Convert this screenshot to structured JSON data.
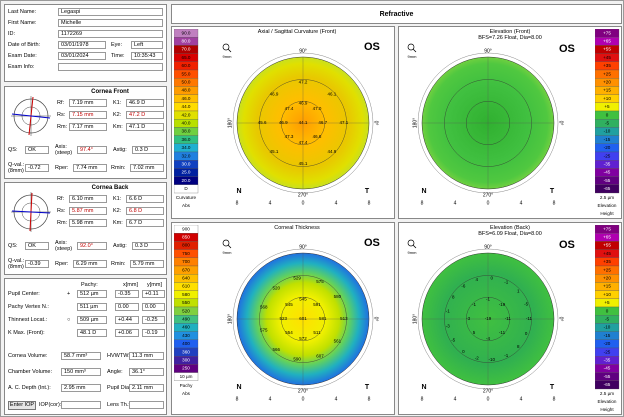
{
  "header": {
    "title": "Refractive"
  },
  "patient": {
    "last_name_label": "Last Name:",
    "last_name": "Legaspi",
    "first_name_label": "First Name:",
    "first_name": "Michelle",
    "id_label": "ID:",
    "id": "1172269",
    "dob_label": "Date of Birth:",
    "dob": "03/01/1978",
    "eye_label": "Eye:",
    "eye": "Left",
    "exam_date_label": "Exam Date:",
    "exam_date": "03/01/2024",
    "time_label": "Time:",
    "time": "10:35:43",
    "exam_info_label": "Exam Info:"
  },
  "cornea_front": {
    "title": "Cornea Front",
    "rf_label": "Rf:",
    "rf": "7.19 mm",
    "k1_label": "K1:",
    "k1": "46.9 D",
    "rs_label": "Rs:",
    "rs": "7.15 mm",
    "k2_label": "K2:",
    "k2": "47.2 D",
    "rm_label": "Rm:",
    "rm": "7.17 mm",
    "km_label": "Km:",
    "km": "47.1 D",
    "qs_label": "QS:",
    "qs": "OK",
    "axis_label": "Axis:\n(steep)",
    "axis": "97.4°",
    "astig_label": "Astig:",
    "astig": "0.3 D",
    "qval_label": "Q-val.:\n(8mm)",
    "qval": "-0.72",
    "rper_label": "Rper:",
    "rper": "7.74 mm",
    "rmin_label": "Rmin:",
    "rmin": "7.02 mm"
  },
  "cornea_back": {
    "title": "Cornea Back",
    "rf_label": "Rf:",
    "rf": "6.10 mm",
    "k1_label": "K1:",
    "k1": "6.6 D",
    "rs_label": "Rs:",
    "rs": "5.87 mm",
    "k2_label": "K2:",
    "k2": "6.8 D",
    "rm_label": "Rm:",
    "rm": "5.98 mm",
    "km_label": "Km:",
    "km": "6.7 D",
    "qs_label": "QS:",
    "qs": "OK",
    "axis_label": "Axis:\n(steep)",
    "axis": "92.0°",
    "astig_label": "Astig:",
    "astig": "0.3 D",
    "qval_label": "Q-val.:\n(8mm)",
    "qval": "-0.39",
    "rper_label": "Rper:",
    "rper": "6.29 mm",
    "rmin_label": "Rmin:",
    "rmin": "5.79 mm"
  },
  "pachy": {
    "col_pachy": "Pachy:",
    "col_x": "x[mm]",
    "col_y": "y[mm]",
    "rows": [
      {
        "label": "Pupil Center:",
        "sym": "+",
        "pachy": "512 µm",
        "x": "-0.35",
        "y": "+0.11"
      },
      {
        "label": "Pachy Vertex N.:",
        "sym": "",
        "pachy": "511 µm",
        "x": "0.00",
        "y": "0.00"
      },
      {
        "label": "Thinnest Locat.:",
        "sym": "○",
        "pachy": "509 µm",
        "x": "+0.44",
        "y": "-0.25"
      },
      {
        "label": "K Max. (Front):",
        "sym": "",
        "pachy": "48.1 D",
        "x": "+0.06",
        "y": "-0.19"
      }
    ],
    "cornea_volume_label": "Cornea Volume:",
    "cornea_volume": "58.7 mm³",
    "hvwtw_label": "HVWTW:",
    "hvwtw": "11.3 mm",
    "chamber_volume_label": "Chamber Volume:",
    "chamber_volume": "150 mm³",
    "angle_label": "Angle:",
    "angle": "36.1°",
    "acd_label": "A. C. Depth (Int.):",
    "acd": "2.95 mm",
    "pupil_dia_label": "Pupil Dia:",
    "pupil_dia": "2.11 mm",
    "enter_iop": "Enter IOP",
    "iopcor": "IOP(cor):",
    "lens_th_label": "Lens Th.:"
  },
  "maps": {
    "curvature": {
      "title": "Axial / Sagittal Curvature (Front)",
      "os": "OS",
      "n": "N",
      "t": "T",
      "scale_label": "Curvature",
      "scale_footer": "Abs",
      "scale": [
        "90.0",
        "80.0",
        "70.0",
        "65.0",
        "60.0",
        "55.0",
        "50.0",
        "48.0",
        "46.0",
        "44.0",
        "42.0",
        "40.0",
        "38.0",
        "36.0",
        "34.0",
        "32.0",
        "30.0",
        "25.0",
        "20.0",
        "D"
      ],
      "values": [
        "44.1",
        "46.7",
        "47.0",
        "46.9",
        "47.4",
        "46.9",
        "47.3",
        "47.4",
        "46.8",
        "47.1",
        "46.1",
        "47.2",
        "46.9",
        "45.6",
        "45.1",
        "45.1",
        "44.9"
      ]
    },
    "elev_front": {
      "title": "Elevation (Front)",
      "subtitle": "BFS=7.26 Float, Dia=8.00",
      "os": "OS",
      "n": "N",
      "t": "T",
      "scale_footer": "2.5 µm",
      "scale_label": "Elevation",
      "scale_unit": "Height",
      "scale": [
        "+75",
        "+65",
        "+55",
        "+45",
        "+35",
        "+25",
        "+20",
        "+15",
        "+10",
        "+5",
        "0",
        "-5",
        "-10",
        "-15",
        "-20",
        "-25",
        "-35",
        "-45",
        "-55",
        "-65"
      ]
    },
    "thickness": {
      "title": "Corneal Thickness",
      "os": "OS",
      "n": "N",
      "t": "T",
      "scale_label": "Pachy",
      "scale_footer": "Abs",
      "scale": [
        "900",
        "850",
        "800",
        "750",
        "700",
        "670",
        "640",
        "610",
        "580",
        "550",
        "520",
        "490",
        "460",
        "430",
        "400",
        "360",
        "300",
        "250",
        "10 µm"
      ],
      "values": [
        "601",
        "581",
        "591",
        "545",
        "545",
        "523",
        "554",
        "572",
        "511",
        "513",
        "580",
        "575",
        "529",
        "520",
        "568",
        "575",
        "566",
        "590",
        "607",
        "561"
      ]
    },
    "elev_back": {
      "title": "Elevation (Back)",
      "subtitle": "BFS=6.09 Float, Dia=8.00",
      "os": "OS",
      "n": "N",
      "t": "T",
      "scale_footer": "2.5 µm",
      "scale_label": "Elevation",
      "scale_unit": "Height",
      "scale": [
        "+75",
        "+65",
        "+55",
        "+45",
        "+35",
        "+25",
        "+20",
        "+15",
        "+10",
        "+5",
        "0",
        "-5",
        "-10",
        "-15",
        "-20",
        "-25",
        "-35",
        "-45",
        "-55",
        "-65"
      ],
      "values": [
        "-19",
        "-11",
        "-19",
        "-1",
        "-1",
        "-3",
        "5",
        "-4",
        "-11",
        "-11",
        "-5",
        "1",
        "-1",
        "0",
        "4",
        "-6",
        "8",
        "-1",
        "-3",
        "-5",
        "0",
        "-2",
        "-10",
        "-1",
        "8",
        "0"
      ]
    }
  },
  "axis_labels": {
    "a90": "90°",
    "a270": "270°",
    "a0": "0°",
    "a180": "180°",
    "ticks": [
      "8",
      "4",
      "0",
      "4",
      "8"
    ],
    "mm": "9mm"
  },
  "colors": {
    "curv_scale": [
      "#c080c0",
      "#a040a0",
      "#b00000",
      "#d80000",
      "#f02000",
      "#ff5000",
      "#ff7800",
      "#ff9c00",
      "#ffbe00",
      "#ffdc00",
      "#e0e000",
      "#b8e000",
      "#70d040",
      "#30c080",
      "#20b0d0",
      "#2080e0",
      "#1040c0",
      "#0020a0",
      "#000080",
      "#fff"
    ],
    "elev_scale": [
      "#800080",
      "#b000b0",
      "#c00000",
      "#e01010",
      "#ff4000",
      "#ff7000",
      "#ff9000",
      "#ffb000",
      "#ffd000",
      "#f0f000",
      "#40c040",
      "#30b060",
      "#20a0a0",
      "#2080d0",
      "#2060f0",
      "#4040f0",
      "#6020d0",
      "#8000a0",
      "#600080",
      "#400060"
    ],
    "thick_scale": [
      "#ffffff",
      "#d00000",
      "#e02000",
      "#ff5000",
      "#ff8000",
      "#ffa000",
      "#ffc000",
      "#ffe000",
      "#f0f000",
      "#c0e000",
      "#80d040",
      "#40c080",
      "#20b0c0",
      "#2090e0",
      "#2060f0",
      "#2040c0",
      "#4020a0",
      "#600080",
      "#fff"
    ]
  }
}
